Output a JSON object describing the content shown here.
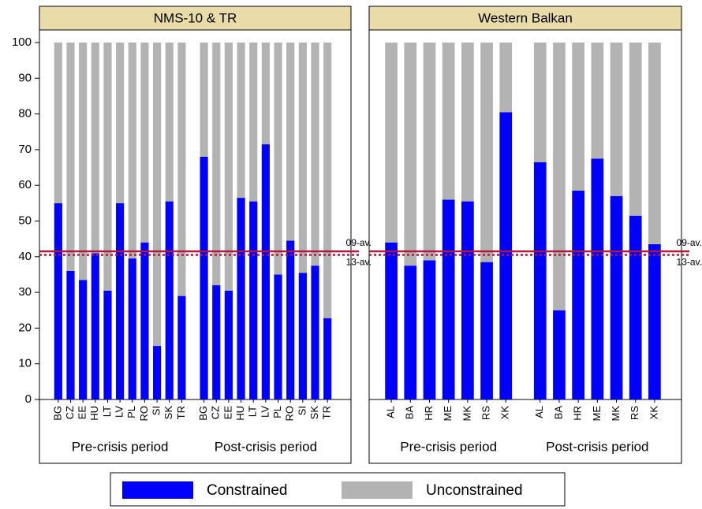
{
  "chart_data": {
    "type": "bar",
    "stacked": true,
    "ylim": [
      0,
      100
    ],
    "yticks": [
      0,
      10,
      20,
      30,
      40,
      50,
      60,
      70,
      80,
      90,
      100
    ],
    "series": [
      {
        "name": "Constrained",
        "color": "#0000ff"
      },
      {
        "name": "Unconstrained",
        "color": "#b3b3b3"
      }
    ],
    "reference_lines": [
      {
        "label": "09-av.",
        "value": 41.5,
        "style": "solid",
        "color": "#b0173a"
      },
      {
        "label": "13-av.",
        "value": 40.5,
        "style": "dotted",
        "color": "#b0173a"
      }
    ],
    "panels": [
      {
        "title": "NMS-10 & TR",
        "groups": [
          {
            "label": "Pre-crisis period",
            "categories": [
              "BG",
              "CZ",
              "EE",
              "HU",
              "LT",
              "LV",
              "PL",
              "RO",
              "SI",
              "SK",
              "TR"
            ],
            "series": [
              {
                "values": [
                  55,
                  36,
                  33.5,
                  41,
                  30.5,
                  55,
                  39.5,
                  44,
                  15,
                  55.5,
                  29
                ]
              },
              {
                "values": [
                  45,
                  64,
                  66.5,
                  59,
                  69.5,
                  45,
                  60.5,
                  56,
                  85,
                  44.5,
                  71
                ]
              }
            ]
          },
          {
            "label": "Post-crisis period",
            "categories": [
              "BG",
              "CZ",
              "EE",
              "HU",
              "LT",
              "LV",
              "PL",
              "RO",
              "SI",
              "SK",
              "TR"
            ],
            "series": [
              {
                "values": [
                  68,
                  32,
                  30.5,
                  56.5,
                  55.5,
                  71.5,
                  35,
                  44.5,
                  35.5,
                  37.5,
                  22.8
                ]
              },
              {
                "values": [
                  32,
                  68,
                  69.5,
                  43.5,
                  44.5,
                  28.5,
                  65,
                  55.5,
                  64.5,
                  62.5,
                  77.2
                ]
              }
            ]
          }
        ]
      },
      {
        "title": "Western Balkan",
        "groups": [
          {
            "label": "Pre-crisis period",
            "categories": [
              "AL",
              "BA",
              "HR",
              "ME",
              "MK",
              "RS",
              "XK"
            ],
            "series": [
              {
                "values": [
                  44,
                  37.5,
                  39,
                  56,
                  55.5,
                  38.5,
                  80.5
                ]
              },
              {
                "values": [
                  56,
                  62.5,
                  61,
                  44,
                  44.5,
                  61.5,
                  19.5
                ]
              }
            ]
          },
          {
            "label": "Post-crisis period",
            "categories": [
              "AL",
              "BA",
              "HR",
              "ME",
              "MK",
              "RS",
              "XK"
            ],
            "series": [
              {
                "values": [
                  66.5,
                  25,
                  58.5,
                  67.5,
                  57,
                  51.5,
                  43.5
                ]
              },
              {
                "values": [
                  33.5,
                  75,
                  41.5,
                  32.5,
                  43,
                  48.5,
                  56.5
                ]
              }
            ]
          }
        ]
      }
    ]
  }
}
